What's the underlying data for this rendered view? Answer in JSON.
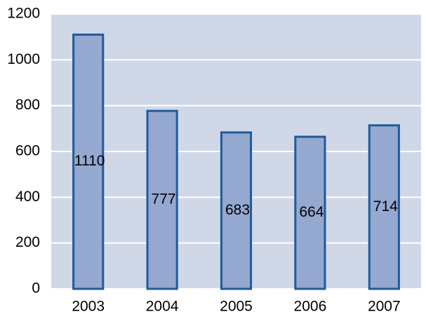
{
  "chart_data": {
    "type": "bar",
    "categories": [
      "2003",
      "2004",
      "2005",
      "2006",
      "2007"
    ],
    "values": [
      1110,
      777,
      683,
      664,
      714
    ],
    "color": "#95a8d0",
    "edge_color": "#1f5a9a",
    "plot_background": "#d0d8e8",
    "ylim": [
      0,
      1200
    ],
    "yticks": [
      0,
      200,
      400,
      600,
      800,
      1000,
      1200
    ],
    "grid": true
  }
}
